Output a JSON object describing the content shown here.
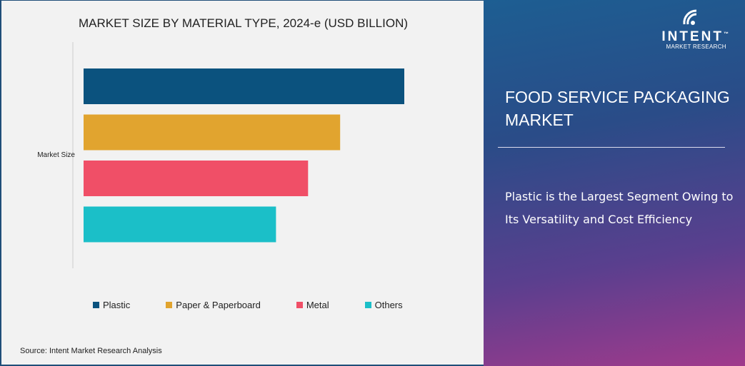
{
  "chart_data": {
    "type": "bar",
    "orientation": "horizontal",
    "title": "MARKET SIZE BY MATERIAL TYPE, 2024-e (USD BILLION)",
    "categories": [
      "Market Size"
    ],
    "series": [
      {
        "name": "Plastic",
        "values": [
          100
        ],
        "color": "#0b527e"
      },
      {
        "name": "Paper & Paperboard",
        "values": [
          80
        ],
        "color": "#e1a42f"
      },
      {
        "name": "Metal",
        "values": [
          70
        ],
        "color": "#f04f67"
      },
      {
        "name": "Others",
        "values": [
          60
        ],
        "color": "#1bbfc8"
      }
    ],
    "xlim": [
      0,
      100
    ],
    "value_note": "relative lengths; no axis values shown",
    "grid": false,
    "legend_position": "bottom"
  },
  "source": "Source:  Intent Market Research Analysis",
  "logo": {
    "name": "INTENT",
    "sub": "MARKET RESEARCH",
    "tm": "™"
  },
  "panel": {
    "title": "FOOD SERVICE PACKAGING MARKET",
    "text": "Plastic is the Largest Segment Owing to Its Versatility and Cost Efficiency"
  }
}
